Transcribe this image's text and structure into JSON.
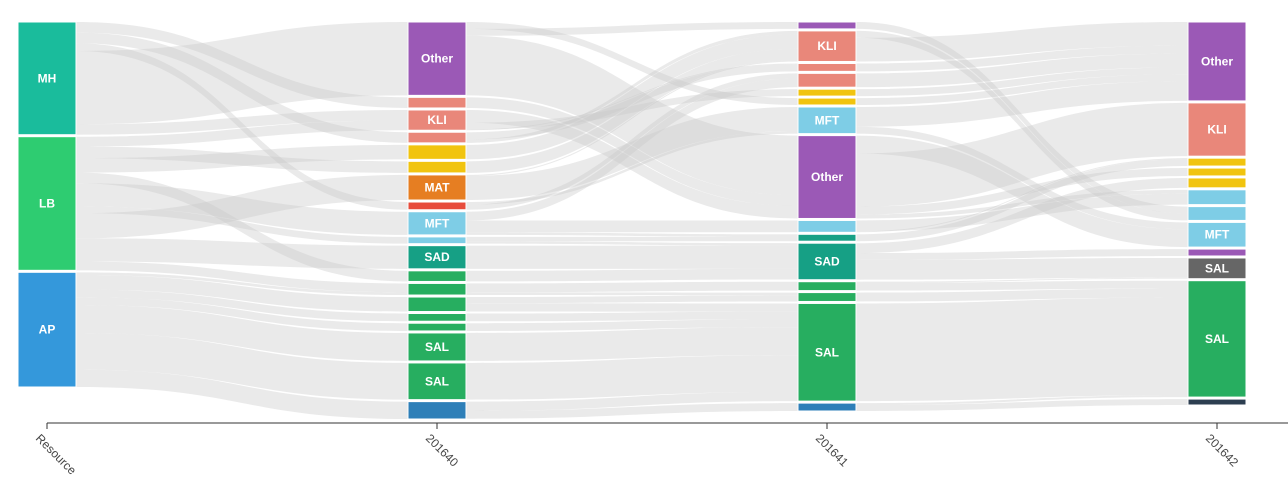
{
  "chart_data": {
    "type": "sankey",
    "x_axis": {
      "labels": [
        "Resource",
        "201640",
        "201641",
        "201642"
      ]
    },
    "colors": {
      "MH": "#1abc9c",
      "LB": "#2ecc71",
      "AP": "#3498db",
      "Other": "#9b59b6",
      "KLI": "#e9877a",
      "yellow": "#f1c40f",
      "MAT": "#e67e22",
      "red": "#e74c3c",
      "MFT": "#7ecde6",
      "SAD": "#16a085",
      "SAL": "#27ae60",
      "blue": "#2e7fb8",
      "dark": "#666666",
      "navy": "#2c3e50",
      "link": "#c8c8c8"
    },
    "columns": [
      {
        "name": "Resource",
        "nodes": [
          {
            "label": "MH",
            "value": 113,
            "color": "MH"
          },
          {
            "label": "LB",
            "value": 134,
            "color": "LB"
          },
          {
            "label": "AP",
            "value": 115,
            "color": "AP"
          }
        ]
      },
      {
        "name": "201640",
        "nodes": [
          {
            "label": "Other",
            "value": 76,
            "color": "Other"
          },
          {
            "label": "",
            "value": 11,
            "color": "KLI"
          },
          {
            "label": "KLI",
            "value": 21,
            "color": "KLI"
          },
          {
            "label": "",
            "value": 11,
            "color": "KLI"
          },
          {
            "label": "",
            "value": 15,
            "color": "yellow"
          },
          {
            "label": "",
            "value": 12,
            "color": "yellow"
          },
          {
            "label": "MAT",
            "value": 26,
            "color": "MAT"
          },
          {
            "label": "",
            "value": 8,
            "color": "red"
          },
          {
            "label": "MFT",
            "value": 24,
            "color": "MFT"
          },
          {
            "label": "",
            "value": 7,
            "color": "MFT"
          },
          {
            "label": "SAD",
            "value": 24,
            "color": "SAD"
          },
          {
            "label": "",
            "value": 11,
            "color": "SAL"
          },
          {
            "label": "",
            "value": 12,
            "color": "SAL"
          },
          {
            "label": "",
            "value": 15,
            "color": "SAL"
          },
          {
            "label": "",
            "value": 8,
            "color": "SAL"
          },
          {
            "label": "",
            "value": 8,
            "color": "SAL"
          },
          {
            "label": "SAL",
            "value": 29,
            "color": "SAL"
          },
          {
            "label": "SAL",
            "value": 38,
            "color": "SAL"
          },
          {
            "label": "",
            "value": 18,
            "color": "blue"
          }
        ]
      },
      {
        "name": "201641",
        "nodes": [
          {
            "label": "",
            "value": 7,
            "color": "Other"
          },
          {
            "label": "KLI",
            "value": 31,
            "color": "KLI"
          },
          {
            "label": "",
            "value": 8,
            "color": "KLI"
          },
          {
            "label": "",
            "value": 14,
            "color": "KLI"
          },
          {
            "label": "",
            "value": 7,
            "color": "yellow"
          },
          {
            "label": "",
            "value": 7,
            "color": "yellow"
          },
          {
            "label": "MFT",
            "value": 27,
            "color": "MFT"
          },
          {
            "label": "Other",
            "value": 84,
            "color": "Other"
          },
          {
            "label": "",
            "value": 12,
            "color": "MFT"
          },
          {
            "label": "",
            "value": 7,
            "color": "SAD"
          },
          {
            "label": "SAD",
            "value": 37,
            "color": "SAD"
          },
          {
            "label": "",
            "value": 9,
            "color": "SAL"
          },
          {
            "label": "",
            "value": 9,
            "color": "SAL"
          },
          {
            "label": "SAL",
            "value": 99,
            "color": "SAL"
          },
          {
            "label": "",
            "value": 8,
            "color": "blue"
          }
        ]
      },
      {
        "name": "201642",
        "nodes": [
          {
            "label": "Other",
            "value": 80,
            "color": "Other"
          },
          {
            "label": "KLI",
            "value": 54,
            "color": "KLI"
          },
          {
            "label": "",
            "value": 8,
            "color": "yellow"
          },
          {
            "label": "",
            "value": 8,
            "color": "yellow"
          },
          {
            "label": "",
            "value": 10,
            "color": "yellow"
          },
          {
            "label": "",
            "value": 15,
            "color": "MFT"
          },
          {
            "label": "",
            "value": 14,
            "color": "MFT"
          },
          {
            "label": "MFT",
            "value": 25,
            "color": "MFT"
          },
          {
            "label": "",
            "value": 7,
            "color": "Other"
          },
          {
            "label": "SAL",
            "value": 21,
            "color": "dark"
          },
          {
            "label": "SAL",
            "value": 118,
            "color": "SAL"
          },
          {
            "label": "",
            "value": 6,
            "color": "navy"
          }
        ]
      }
    ]
  }
}
